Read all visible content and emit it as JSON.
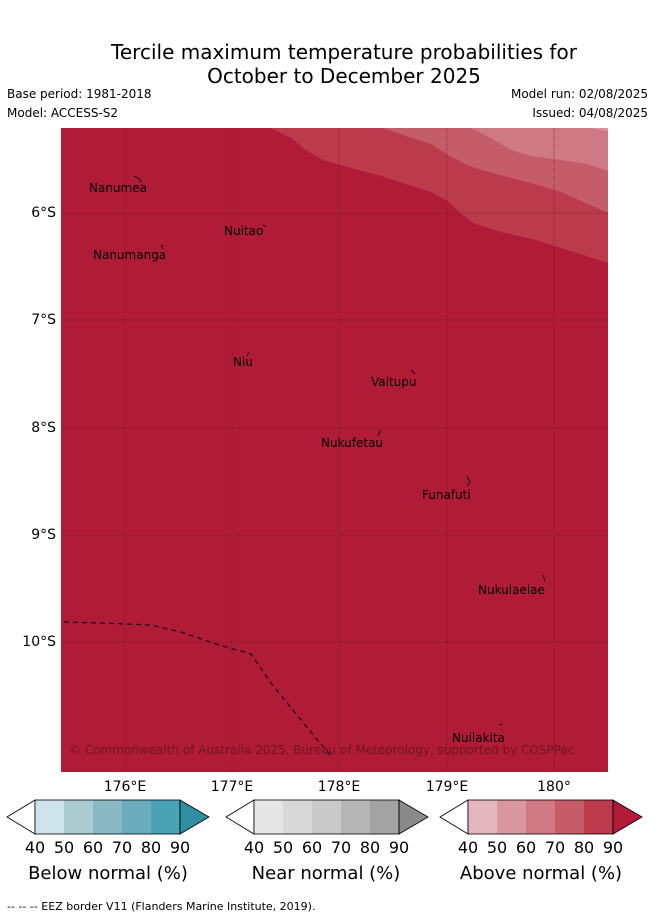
{
  "title": {
    "line1": "Tercile maximum temperature probabilities for",
    "line2": "October to December 2025"
  },
  "meta": {
    "base_period": "Base period: 1981-2018",
    "model": "Model: ACCESS-S2",
    "model_run": "Model run: 02/08/2025",
    "issued": "Issued: 04/08/2025"
  },
  "map": {
    "lon_range": [
      175.45,
      180.55
    ],
    "lat_range": [
      -5.35,
      -11.35
    ],
    "latitude_labels": [
      "6°S",
      "7°S",
      "8°S",
      "9°S",
      "10°S"
    ],
    "longitude_labels": [
      "176°E",
      "177°E",
      "178°E",
      "179°E",
      "180°"
    ],
    "dominant_category": "Above normal",
    "dominant_probability_band": "80-90",
    "places": [
      "Nanumea",
      "Nuitao",
      "Nanumanga",
      "Niu",
      "Vaitupu",
      "Nukufetau",
      "Funafuti",
      "Nukulaelae",
      "Nuilakita"
    ],
    "copyright": "© Commonwealth of Australia 2025, Bureau of Meteorology, supported by COSPPac",
    "colors": {
      "above_40": "#e3b8bf",
      "above_50": "#d8979f",
      "above_60": "#ce7983",
      "above_70": "#c45c69",
      "above_80": "#bb3b4d",
      "above_90": "#b01c38"
    }
  },
  "legends": [
    {
      "title": "Below normal (%)",
      "ticks": [
        "40",
        "50",
        "60",
        "70",
        "80",
        "90"
      ],
      "colors": [
        "#ffffff",
        "#cde4ea",
        "#abcbd1",
        "#8bb8c5",
        "#6aadbd",
        "#4aa3b5",
        "#2f8ea2"
      ]
    },
    {
      "title": "Near normal (%)",
      "ticks": [
        "40",
        "50",
        "60",
        "70",
        "80",
        "90"
      ],
      "colors": [
        "#ffffff",
        "#e6e6e6",
        "#d8d8d8",
        "#c9c9c9",
        "#b6b6b6",
        "#a3a3a3",
        "#8a8a8a"
      ]
    },
    {
      "title": "Above normal (%)",
      "ticks": [
        "40",
        "50",
        "60",
        "70",
        "80",
        "90"
      ],
      "colors": [
        "#ffffff",
        "#e3b8bf",
        "#d8979f",
        "#ce7983",
        "#c45c69",
        "#bb3b4d",
        "#b01c38"
      ]
    }
  ],
  "footnote": "--  --  -- EEZ border V11 (Flanders Marine Institute, 2019)."
}
